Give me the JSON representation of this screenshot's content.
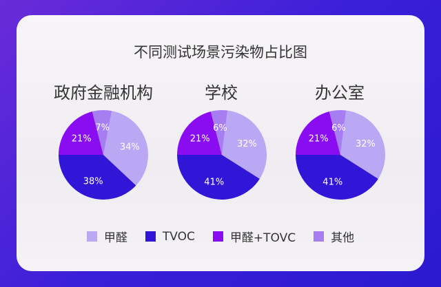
{
  "chart_data": [
    {
      "type": "pie",
      "title": "政府金融机构",
      "categories": [
        "甲醛",
        "TVOC",
        "甲醛+TOVC",
        "其他"
      ],
      "values": [
        34,
        38,
        21,
        7
      ]
    },
    {
      "type": "pie",
      "title": "学校",
      "categories": [
        "甲醛",
        "TVOC",
        "甲醛+TOVC",
        "其他"
      ],
      "values": [
        32,
        41,
        21,
        6
      ]
    },
    {
      "type": "pie",
      "title": "办公室",
      "categories": [
        "甲醛",
        "TVOC",
        "甲醛+TOVC",
        "其他"
      ],
      "values": [
        32,
        41,
        21,
        6
      ]
    }
  ],
  "title": "不同测试场景污染物占比图",
  "legend": [
    {
      "label": "甲醛",
      "color": "#bba8f5"
    },
    {
      "label": "TVOC",
      "color": "#3216d8"
    },
    {
      "label": "甲醛+TOVC",
      "color": "#8a0cf0"
    },
    {
      "label": "其他",
      "color": "#a77ef2"
    }
  ],
  "unit": "%"
}
